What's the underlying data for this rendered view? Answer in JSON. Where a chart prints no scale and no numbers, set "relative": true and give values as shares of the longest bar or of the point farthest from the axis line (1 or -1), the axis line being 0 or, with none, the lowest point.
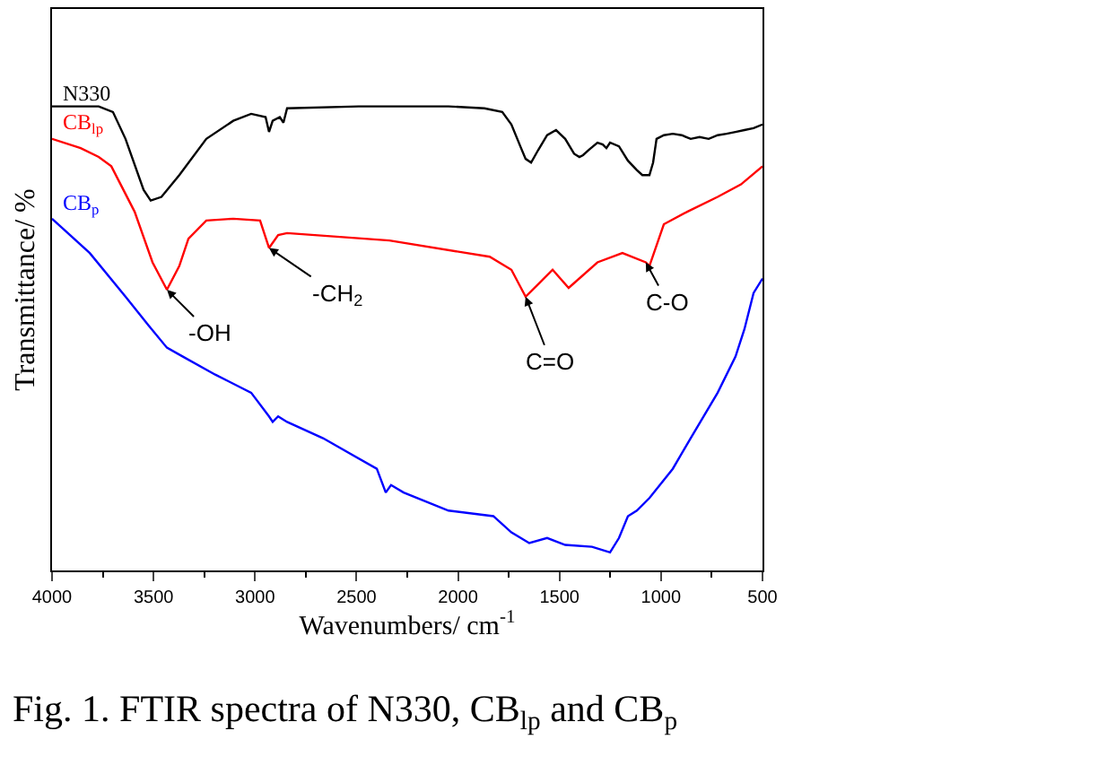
{
  "chart_data": {
    "type": "line",
    "relative": true,
    "xlabel": "Wavenumbers/ cm$^{-1}$",
    "ylabel": "Transmittance/ %",
    "xlim": [
      4000,
      500
    ],
    "xticks": [
      4000,
      3500,
      3000,
      2500,
      2000,
      1500,
      1000,
      500
    ],
    "legend": false,
    "marker": "none",
    "line_style": "solid",
    "series": [
      {
        "name": "N330",
        "color": "#000000",
        "x": [
          4000,
          3770,
          3700,
          3638,
          3549,
          3514,
          3461,
          3373,
          3240,
          3107,
          3019,
          2948,
          2931,
          2913,
          2878,
          2860,
          2842,
          2489,
          2338,
          2047,
          1870,
          1782,
          1737,
          1693,
          1667,
          1640,
          1605,
          1561,
          1517,
          1472,
          1428,
          1402,
          1384,
          1357,
          1313,
          1287,
          1269,
          1251,
          1207,
          1163,
          1119,
          1092,
          1057,
          1039,
          1022,
          986,
          942,
          898,
          854,
          810,
          765,
          721,
          677,
          633,
          589,
          544,
          500
        ],
        "values": [
          1.0,
          1.0,
          0.988,
          0.93,
          0.82,
          0.797,
          0.805,
          0.852,
          0.93,
          0.969,
          0.984,
          0.977,
          0.945,
          0.969,
          0.977,
          0.965,
          0.996,
          1.0,
          1.0,
          1.0,
          0.996,
          0.988,
          0.961,
          0.914,
          0.887,
          0.879,
          0.906,
          0.938,
          0.949,
          0.93,
          0.898,
          0.891,
          0.895,
          0.906,
          0.922,
          0.918,
          0.91,
          0.922,
          0.914,
          0.883,
          0.863,
          0.852,
          0.852,
          0.879,
          0.93,
          0.938,
          0.941,
          0.938,
          0.93,
          0.934,
          0.93,
          0.938,
          0.941,
          0.945,
          0.949,
          0.953,
          0.961
        ]
      },
      {
        "name": "CB$_{lp}$",
        "color": "#ff0000",
        "x": [
          4000,
          3859,
          3770,
          3708,
          3593,
          3505,
          3434,
          3373,
          3328,
          3240,
          3107,
          2975,
          2931,
          2886,
          2842,
          2338,
          1844,
          1737,
          1667,
          1605,
          1534,
          1455,
          1313,
          1190,
          1075,
          1057,
          986,
          871,
          721,
          606,
          500
        ],
        "values": [
          0.93,
          0.91,
          0.891,
          0.871,
          0.773,
          0.664,
          0.605,
          0.656,
          0.715,
          0.754,
          0.758,
          0.754,
          0.695,
          0.723,
          0.727,
          0.711,
          0.676,
          0.648,
          0.59,
          0.617,
          0.648,
          0.609,
          0.664,
          0.684,
          0.664,
          0.656,
          0.746,
          0.773,
          0.805,
          0.832,
          0.871
        ]
      },
      {
        "name": "CB$_{p}$",
        "color": "#0000ff",
        "x": [
          4000,
          3814,
          3638,
          3523,
          3434,
          3373,
          3196,
          3019,
          2931,
          2913,
          2886,
          2842,
          2665,
          2400,
          2356,
          2330,
          2268,
          2047,
          1826,
          1737,
          1649,
          1561,
          1472,
          1340,
          1251,
          1207,
          1163,
          1119,
          1057,
          942,
          854,
          721,
          633,
          589,
          544,
          500
        ],
        "values": [
          0.758,
          0.684,
          0.59,
          0.527,
          0.48,
          0.465,
          0.422,
          0.383,
          0.332,
          0.32,
          0.332,
          0.32,
          0.285,
          0.219,
          0.168,
          0.184,
          0.168,
          0.129,
          0.117,
          0.082,
          0.059,
          0.07,
          0.055,
          0.051,
          0.039,
          0.07,
          0.117,
          0.129,
          0.156,
          0.219,
          0.285,
          0.383,
          0.461,
          0.52,
          0.598,
          0.629
        ]
      }
    ],
    "annotations": [
      {
        "text": "-OH",
        "x": 3434,
        "y": 0.605
      },
      {
        "text": "-CH$_{2}$",
        "x": 2931,
        "y": 0.695
      },
      {
        "text": "C=O",
        "x": 1667,
        "y": 0.59
      },
      {
        "text": "C-O",
        "x": 1075,
        "y": 0.664
      },
      "Fig. 1. FTIR spectra of N330, CB$_{lp}$ and CB$_{p}$"
    ]
  }
}
